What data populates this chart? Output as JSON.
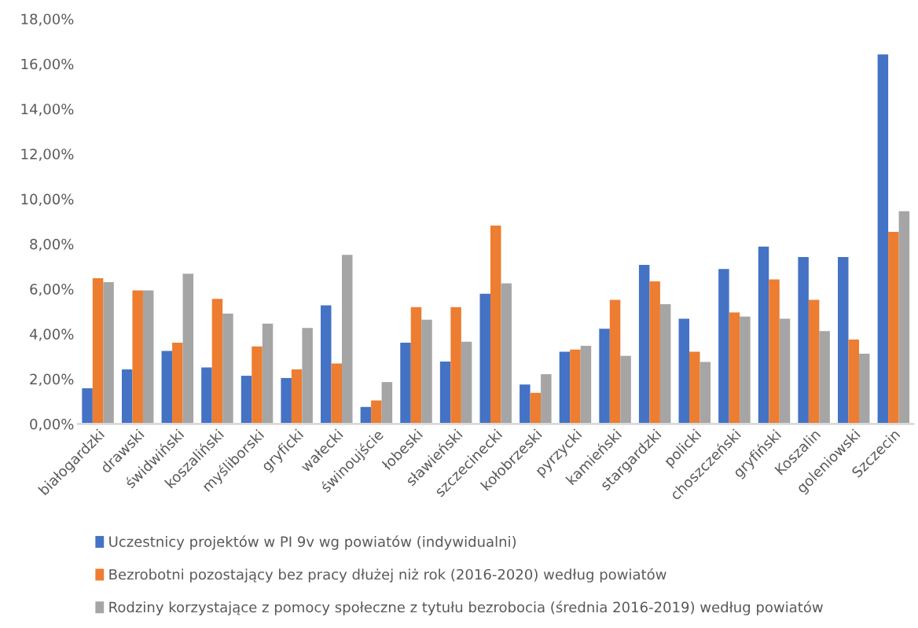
{
  "chart_data": {
    "type": "bar",
    "categories": [
      "białogardzki",
      "drawski",
      "świdwiński",
      "koszaliński",
      "myśliborski",
      "gryficki",
      "wałecki",
      "świnoujście",
      "łobeski",
      "sławieński",
      "szczecinecki",
      "kołobrzeski",
      "pyrzycki",
      "kamieński",
      "stargardzki",
      "policki",
      "choszczeński",
      "gryfiński",
      "Koszalin",
      "goleniowski",
      "Szczecin"
    ],
    "series": [
      {
        "name": "Uczestnicy projektów w PI 9v wg powiatów (indywidualni)",
        "color": "#4472c4",
        "values": [
          1.58,
          2.42,
          3.24,
          2.51,
          2.14,
          2.04,
          5.27,
          0.75,
          3.61,
          2.77,
          5.78,
          1.75,
          3.21,
          4.23,
          7.07,
          4.67,
          6.88,
          7.88,
          7.42,
          7.42,
          16.42
        ]
      },
      {
        "name": "Bezrobotni pozostający bez pracy dłużej niż rok (2016-2020) według powiatów",
        "color": "#ed7d31",
        "values": [
          6.47,
          5.93,
          3.61,
          5.56,
          3.44,
          2.42,
          2.68,
          1.04,
          5.19,
          5.19,
          8.81,
          1.38,
          3.3,
          5.51,
          6.33,
          3.21,
          4.95,
          6.42,
          5.51,
          3.75,
          8.53
        ]
      },
      {
        "name": "Rodziny korzystające z pomocy społeczne z tytułu bezrobocia (średnia 2016-2019) według powiatów",
        "color": "#a5a5a5",
        "values": [
          6.3,
          5.93,
          6.67,
          4.9,
          4.46,
          4.26,
          7.51,
          1.86,
          4.63,
          3.65,
          6.25,
          2.21,
          3.47,
          3.02,
          5.32,
          2.75,
          4.77,
          4.67,
          4.12,
          3.12,
          9.45
        ]
      }
    ],
    "ylim": [
      0,
      18
    ],
    "yticks": [
      {
        "value": 0,
        "label": "0,00%"
      },
      {
        "value": 2,
        "label": "2,00%"
      },
      {
        "value": 4,
        "label": "4,00%"
      },
      {
        "value": 6,
        "label": "6,00%"
      },
      {
        "value": 8,
        "label": "8,00%"
      },
      {
        "value": 10,
        "label": "10,00%"
      },
      {
        "value": 12,
        "label": "12,00%"
      },
      {
        "value": 14,
        "label": "14,00%"
      },
      {
        "value": 16,
        "label": "16,00%"
      },
      {
        "value": 18,
        "label": "18,00%"
      }
    ],
    "grid": false,
    "legend": "bottom"
  }
}
